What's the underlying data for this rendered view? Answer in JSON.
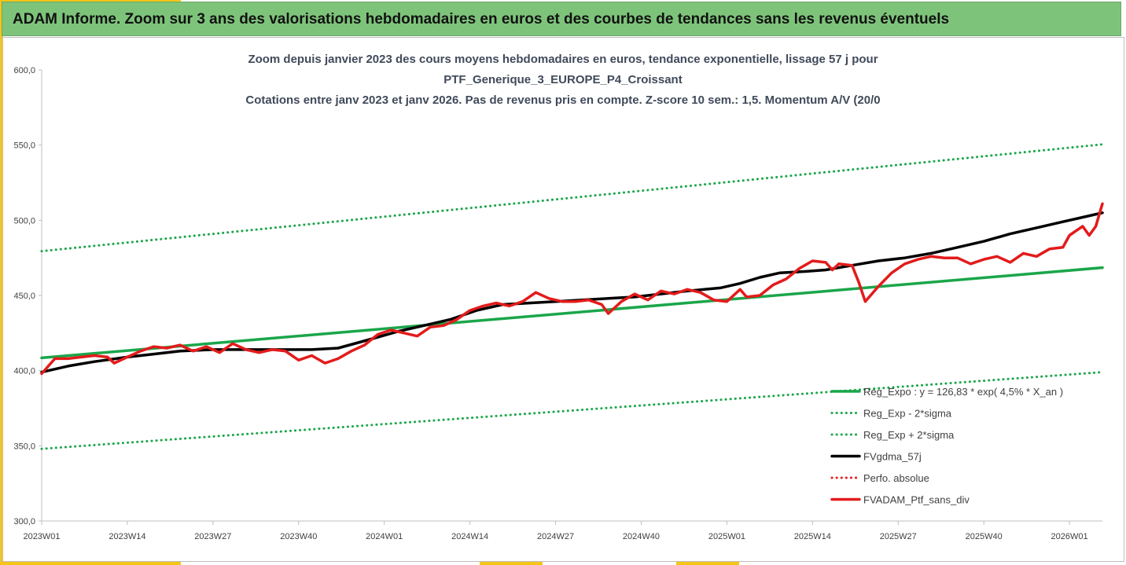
{
  "banner": {
    "title": "ADAM Informe. Zoom sur 3 ans des valorisations hebdomadaires en euros et des courbes de tendances sans les revenus éventuels"
  },
  "colors": {
    "green": "#1aa64a",
    "black": "#000000",
    "red": "#e31b1b",
    "banner": "#7dc47a",
    "accent": "#f5c518"
  },
  "chart_data": {
    "type": "line",
    "title_lines": [
      "Zoom depuis janvier 2023 des cours moyens hebdomadaires  en euros, tendance exponentielle, lissage 57 j pour",
      "PTF_Generique_3_EUROPE_P4_Croissant",
      "Cotations entre janv 2023 et janv 2026. Pas de revenus pris en compte. Z-score 10 sem.: 1,5. Momentum A/V (20/0"
    ],
    "ylim": [
      300,
      600
    ],
    "y_ticks": [
      "300,0",
      "350,0",
      "400,0",
      "450,0",
      "500,0",
      "550,0",
      "600,0"
    ],
    "x_ticks": [
      {
        "label": "2023W01",
        "week": 0
      },
      {
        "label": "2023W14",
        "week": 13
      },
      {
        "label": "2023W27",
        "week": 26
      },
      {
        "label": "2023W40",
        "week": 39
      },
      {
        "label": "2024W01",
        "week": 52
      },
      {
        "label": "2024W14",
        "week": 65
      },
      {
        "label": "2024W27",
        "week": 78
      },
      {
        "label": "2024W40",
        "week": 91
      },
      {
        "label": "2025W01",
        "week": 104
      },
      {
        "label": "2025W14",
        "week": 117
      },
      {
        "label": "2025W27",
        "week": 130
      },
      {
        "label": "2025W40",
        "week": 143
      },
      {
        "label": "2026W01",
        "week": 156
      }
    ],
    "x_max_week": 161,
    "series": [
      {
        "name": "Reg_Expo : y = 126,83 * exp( 4,5% *  X_an )",
        "style": "solid-green",
        "points": [
          [
            0,
            408.5
          ],
          [
            161,
            468.5
          ]
        ]
      },
      {
        "name": "Reg_Exp - 2*sigma",
        "style": "dotted-green",
        "points": [
          [
            0,
            348
          ],
          [
            161,
            399
          ]
        ]
      },
      {
        "name": "Reg_Exp + 2*sigma",
        "style": "dotted-green",
        "points": [
          [
            0,
            479.5
          ],
          [
            161,
            550.5
          ]
        ]
      },
      {
        "name": "FVgdma_57j",
        "style": "solid-black",
        "points": [
          [
            0,
            399
          ],
          [
            4,
            403
          ],
          [
            8,
            406
          ],
          [
            13,
            409
          ],
          [
            17,
            411
          ],
          [
            21,
            413
          ],
          [
            26,
            414
          ],
          [
            31,
            414
          ],
          [
            36,
            414
          ],
          [
            41,
            414
          ],
          [
            45,
            415
          ],
          [
            50,
            421
          ],
          [
            54,
            426
          ],
          [
            58,
            430
          ],
          [
            62,
            434
          ],
          [
            66,
            440
          ],
          [
            70,
            444
          ],
          [
            74,
            445
          ],
          [
            78,
            446
          ],
          [
            82,
            447
          ],
          [
            86,
            448
          ],
          [
            90,
            449
          ],
          [
            94,
            451
          ],
          [
            98,
            453
          ],
          [
            103,
            455
          ],
          [
            106,
            458
          ],
          [
            109,
            462
          ],
          [
            112,
            465
          ],
          [
            116,
            466
          ],
          [
            119,
            467
          ],
          [
            123,
            470
          ],
          [
            127,
            473
          ],
          [
            131,
            475
          ],
          [
            135,
            478
          ],
          [
            139,
            482
          ],
          [
            143,
            486
          ],
          [
            147,
            491
          ],
          [
            151,
            495
          ],
          [
            155,
            499
          ],
          [
            158,
            502
          ],
          [
            161,
            505
          ]
        ]
      },
      {
        "name": "Perfo. absolue",
        "style": "dotted-red",
        "points": []
      },
      {
        "name": "FVADAM_Ptf_sans_div",
        "style": "solid-red",
        "points": [
          [
            0,
            398
          ],
          [
            2,
            408
          ],
          [
            4,
            408
          ],
          [
            6,
            409
          ],
          [
            8,
            410
          ],
          [
            10,
            409
          ],
          [
            11,
            405
          ],
          [
            13,
            409
          ],
          [
            15,
            413
          ],
          [
            17,
            416
          ],
          [
            19,
            415
          ],
          [
            21,
            417
          ],
          [
            23,
            413
          ],
          [
            25,
            416
          ],
          [
            27,
            412
          ],
          [
            29,
            418
          ],
          [
            31,
            414
          ],
          [
            33,
            412
          ],
          [
            35,
            414
          ],
          [
            37,
            413
          ],
          [
            39,
            407
          ],
          [
            41,
            410
          ],
          [
            43,
            405
          ],
          [
            45,
            408
          ],
          [
            47,
            413
          ],
          [
            49,
            417
          ],
          [
            51,
            424
          ],
          [
            53,
            427
          ],
          [
            55,
            425
          ],
          [
            57,
            423
          ],
          [
            59,
            429
          ],
          [
            61,
            430
          ],
          [
            63,
            434
          ],
          [
            65,
            440
          ],
          [
            67,
            443
          ],
          [
            69,
            445
          ],
          [
            71,
            443
          ],
          [
            73,
            446
          ],
          [
            75,
            452
          ],
          [
            77,
            448
          ],
          [
            79,
            446
          ],
          [
            81,
            446
          ],
          [
            83,
            447
          ],
          [
            85,
            444
          ],
          [
            86,
            438
          ],
          [
            88,
            446
          ],
          [
            90,
            451
          ],
          [
            92,
            447
          ],
          [
            94,
            453
          ],
          [
            96,
            451
          ],
          [
            98,
            454
          ],
          [
            100,
            452
          ],
          [
            102,
            447
          ],
          [
            104,
            446
          ],
          [
            106,
            454
          ],
          [
            107,
            449
          ],
          [
            109,
            450
          ],
          [
            111,
            457
          ],
          [
            113,
            461
          ],
          [
            115,
            468
          ],
          [
            117,
            473
          ],
          [
            119,
            472
          ],
          [
            120,
            467
          ],
          [
            121,
            471
          ],
          [
            123,
            470
          ],
          [
            124,
            459
          ],
          [
            125,
            446
          ],
          [
            127,
            456
          ],
          [
            129,
            465
          ],
          [
            131,
            471
          ],
          [
            133,
            474
          ],
          [
            135,
            476
          ],
          [
            137,
            475
          ],
          [
            139,
            475
          ],
          [
            141,
            471
          ],
          [
            143,
            474
          ],
          [
            145,
            476
          ],
          [
            147,
            472
          ],
          [
            149,
            478
          ],
          [
            151,
            476
          ],
          [
            153,
            481
          ],
          [
            155,
            482
          ],
          [
            156,
            490
          ],
          [
            157,
            493
          ],
          [
            158,
            496
          ],
          [
            159,
            490
          ],
          [
            160,
            496
          ],
          [
            161,
            511
          ]
        ]
      }
    ]
  }
}
